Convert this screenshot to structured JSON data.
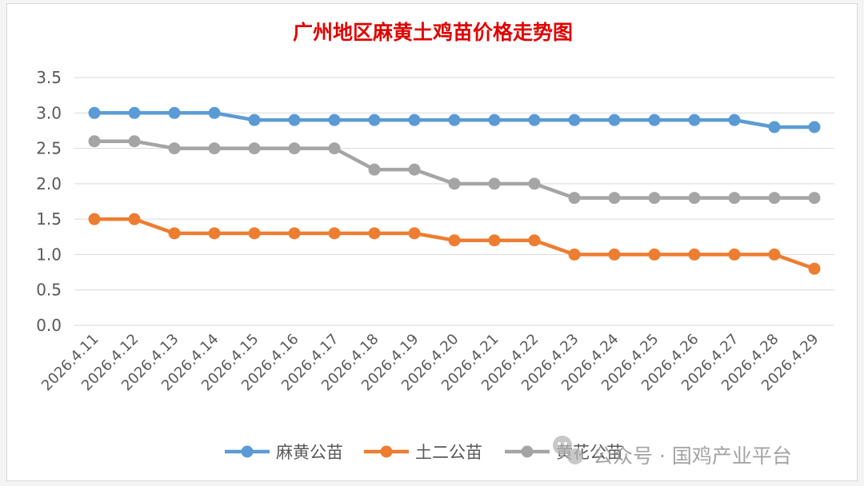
{
  "chart_data": {
    "type": "line",
    "title": "广州地区麻黄土鸡苗价格走势图",
    "categories": [
      "2026.4.11",
      "2026.4.12",
      "2026.4.13",
      "2026.4.14",
      "2026.4.15",
      "2026.4.16",
      "2026.4.17",
      "2026.4.18",
      "2026.4.19",
      "2026.4.20",
      "2026.4.21",
      "2026.4.22",
      "2026.4.23",
      "2026.4.24",
      "2026.4.25",
      "2026.4.26",
      "2026.4.27",
      "2026.4.28",
      "2026.4.29"
    ],
    "ylim": [
      0,
      3.5
    ],
    "yticks": [
      "0.0",
      "0.5",
      "1.0",
      "1.5",
      "2.0",
      "2.5",
      "3.0",
      "3.5"
    ],
    "grid": true,
    "legend_position": "bottom",
    "series": [
      {
        "name": "麻黄公苗",
        "color": "#5b9bd5",
        "values": [
          3.0,
          3.0,
          3.0,
          3.0,
          2.9,
          2.9,
          2.9,
          2.9,
          2.9,
          2.9,
          2.9,
          2.9,
          2.9,
          2.9,
          2.9,
          2.9,
          2.9,
          2.8,
          2.8
        ]
      },
      {
        "name": "土二公苗",
        "color": "#ed7d31",
        "values": [
          1.5,
          1.5,
          1.3,
          1.3,
          1.3,
          1.3,
          1.3,
          1.3,
          1.3,
          1.2,
          1.2,
          1.2,
          1.0,
          1.0,
          1.0,
          1.0,
          1.0,
          1.0,
          0.8
        ]
      },
      {
        "name": "黄花公苗",
        "color": "#a5a5a5",
        "values": [
          2.6,
          2.6,
          2.5,
          2.5,
          2.5,
          2.5,
          2.5,
          2.2,
          2.2,
          2.0,
          2.0,
          2.0,
          1.8,
          1.8,
          1.8,
          1.8,
          1.8,
          1.8,
          1.8
        ]
      }
    ]
  },
  "watermark": {
    "text": "公众号 · 国鸡产业平台",
    "icon": "wechat-icon"
  }
}
